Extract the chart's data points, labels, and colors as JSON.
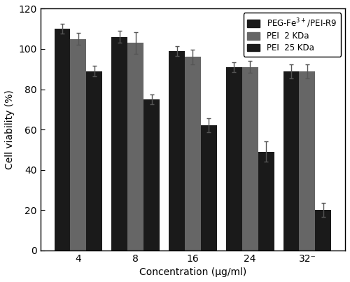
{
  "concentrations": [
    "4",
    "8",
    "16",
    "24",
    "32⁻"
  ],
  "series": [
    {
      "label": "PEG-Fe$^{3+}$/PEI-R9",
      "color": "#1a1a1a",
      "values": [
        110,
        106,
        99,
        91,
        89
      ],
      "errors": [
        2.5,
        3.0,
        2.5,
        2.5,
        3.5
      ]
    },
    {
      "label": "PEI  2 KDa",
      "color": "#666666",
      "values": [
        105,
        103,
        96,
        91,
        89
      ],
      "errors": [
        3.0,
        5.5,
        3.5,
        3.0,
        3.5
      ]
    },
    {
      "label": "PEI  25 KDa",
      "color": "#1a1a1a",
      "values": [
        89,
        75,
        62,
        49,
        20
      ],
      "errors": [
        2.5,
        2.5,
        3.5,
        5.0,
        3.5
      ]
    }
  ],
  "ylabel": "Cell viability (%)",
  "xlabel": "Concentration (μg/ml)",
  "ylim": [
    0,
    120
  ],
  "yticks": [
    0,
    20,
    40,
    60,
    80,
    100,
    120
  ],
  "bar_width": 0.28,
  "background_color": "#ffffff",
  "legend_colors": [
    "#1a1a1a",
    "#666666",
    "#1a1a1a"
  ],
  "legend_labels": [
    "PEG-Fe$^{3+}$/PEI-R9",
    "PEI  2 KDa",
    "PEI  25 KDa"
  ]
}
